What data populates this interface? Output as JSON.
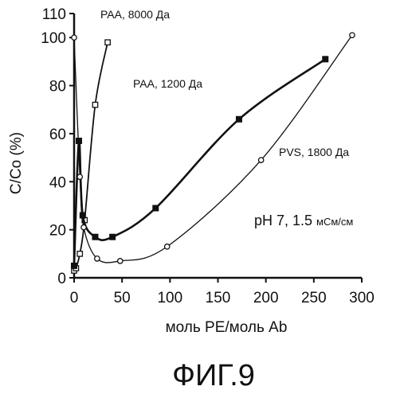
{
  "chart_data": {
    "type": "scatter",
    "xlabel": "моль PE/моль Ab",
    "ylabel": "C/Co (%)",
    "xlim": [
      0,
      300
    ],
    "ylim": [
      0,
      110
    ],
    "x_ticks": [
      0,
      50,
      100,
      150,
      200,
      250,
      300
    ],
    "y_ticks": [
      0,
      20,
      40,
      60,
      80,
      100,
      110
    ],
    "grid": false,
    "series": [
      {
        "name": "PAA, 8000 Да",
        "marker": "open-square",
        "curve": "smooth",
        "x": [
          0,
          2,
          6,
          11,
          22,
          35
        ],
        "y": [
          3,
          4,
          10,
          24,
          72,
          98
        ]
      },
      {
        "name": "PAA, 1200 Да",
        "marker": "filled-square",
        "curve": "smooth",
        "x": [
          0,
          5,
          9,
          22,
          40,
          85,
          172,
          262
        ],
        "y": [
          5,
          57,
          26,
          17,
          17,
          29,
          66,
          91
        ]
      },
      {
        "name": "PVS, 1800 Да",
        "marker": "open-circle",
        "curve": "smooth",
        "x": [
          0,
          6,
          10,
          24,
          48,
          97,
          195,
          290
        ],
        "y": [
          100,
          42,
          21,
          8,
          7,
          13,
          49,
          101
        ]
      }
    ],
    "annotations": {
      "condition_main": "pH 7, 1.5",
      "condition_unit": "мСм/см"
    }
  },
  "caption": "ФИГ.9"
}
